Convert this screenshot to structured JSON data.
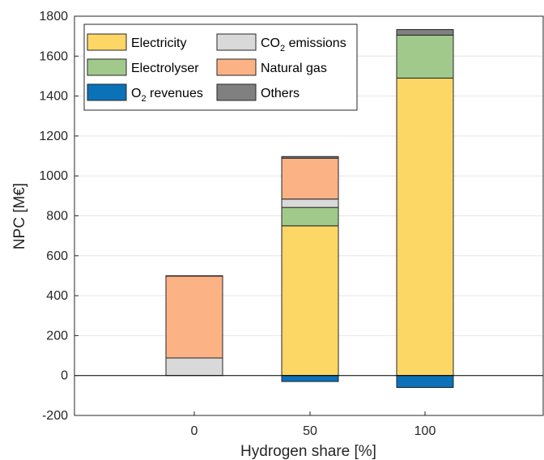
{
  "chart_data": {
    "type": "bar",
    "stacked": true,
    "categories": [
      "0",
      "50",
      "100"
    ],
    "xlabel": "Hydrogen share [%]",
    "ylabel": "NPC [M€]",
    "ylim": [
      -200,
      1800
    ],
    "yticks": [
      -200,
      0,
      200,
      400,
      600,
      800,
      1000,
      1200,
      1400,
      1600,
      1800
    ],
    "grid": true,
    "legend_position": "top-left",
    "series": [
      {
        "name": "Electricity",
        "color": "#fdd766",
        "values": [
          0,
          750,
          1490
        ]
      },
      {
        "name": "Electrolyser",
        "color": "#a1c98c",
        "values": [
          0,
          92,
          215
        ]
      },
      {
        "name": "CO2 emissions",
        "color": "#d9d9d9",
        "values": [
          88,
          42,
          0
        ]
      },
      {
        "name": "Natural gas",
        "color": "#fbb285",
        "values": [
          410,
          205,
          0
        ]
      },
      {
        "name": "Others",
        "color": "#808080",
        "values": [
          2,
          8,
          28
        ]
      },
      {
        "name": "O2 revenues",
        "color": "#0b72b9",
        "values": [
          0,
          -30,
          -60
        ]
      }
    ],
    "legend": {
      "items": [
        {
          "main": "Electricity",
          "sub": "",
          "tail": "",
          "color": "#fdd766"
        },
        {
          "main": "CO",
          "sub": "2",
          "tail": " emissions",
          "color": "#d9d9d9"
        },
        {
          "main": "Electrolyser",
          "sub": "",
          "tail": "",
          "color": "#a1c98c"
        },
        {
          "main": "Natural gas",
          "sub": "",
          "tail": "",
          "color": "#fbb285"
        },
        {
          "main": "O",
          "sub": "2",
          "tail": " revenues",
          "color": "#0b72b9"
        },
        {
          "main": "Others",
          "sub": "",
          "tail": "",
          "color": "#808080"
        }
      ]
    }
  }
}
